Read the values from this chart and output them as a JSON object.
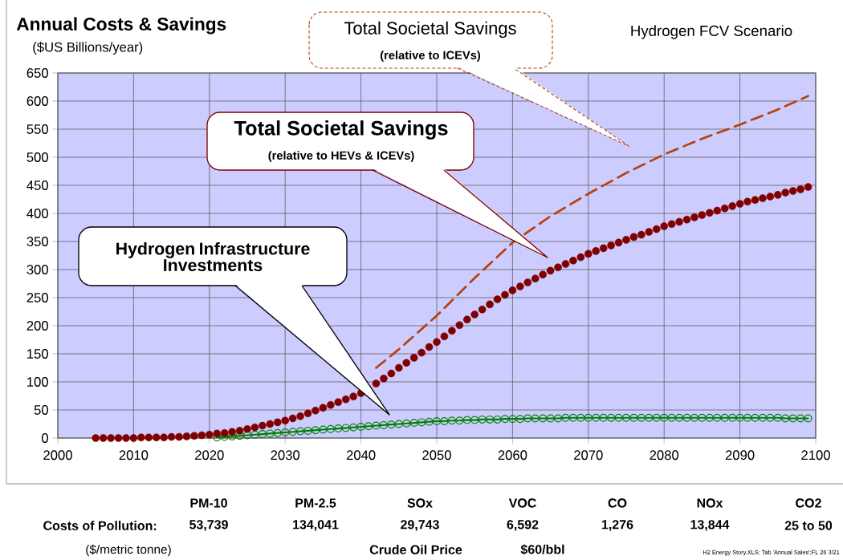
{
  "chart_data": {
    "type": "line",
    "title": "Annual Costs & Savings",
    "subtitle": "($US Billions/year)",
    "xlim": [
      2000,
      2100
    ],
    "ylim": [
      0,
      650
    ],
    "xticks": [
      2000,
      2010,
      2020,
      2030,
      2040,
      2050,
      2060,
      2070,
      2080,
      2090,
      2100
    ],
    "yticks": [
      0,
      50,
      100,
      150,
      200,
      250,
      300,
      350,
      400,
      450,
      500,
      550,
      600,
      650
    ],
    "grid": true,
    "series": [
      {
        "color": "#b5400a",
        "line_style": "dashed",
        "marker": "none",
        "x": [
          2042,
          2045,
          2050,
          2055,
          2060,
          2065,
          2070,
          2075,
          2080,
          2085,
          2090,
          2095,
          2099
        ],
        "values": [
          125,
          158,
          218,
          285,
          348,
          395,
          435,
          472,
          505,
          533,
          558,
          585,
          609
        ]
      },
      {
        "color": "#008000",
        "marker": "circle",
        "x": [
          2021,
          2022,
          2023,
          2024,
          2025,
          2026,
          2027,
          2028,
          2029,
          2030,
          2031,
          2032,
          2033,
          2034,
          2035,
          2036,
          2037,
          2038,
          2039,
          2040,
          2041,
          2042,
          2043,
          2044,
          2045,
          2046,
          2047,
          2048,
          2049,
          2050,
          2051,
          2052,
          2053,
          2054,
          2055,
          2056,
          2057,
          2058,
          2059,
          2060,
          2061,
          2062,
          2063,
          2064,
          2065,
          2066,
          2067,
          2068,
          2069,
          2070,
          2071,
          2072,
          2073,
          2074,
          2075,
          2076,
          2077,
          2078,
          2079,
          2080,
          2081,
          2082,
          2083,
          2084,
          2085,
          2086,
          2087,
          2088,
          2089,
          2090,
          2091,
          2092,
          2093,
          2094,
          2095,
          2096,
          2097,
          2098,
          2099
        ],
        "values": [
          1,
          2,
          3,
          4,
          5,
          6,
          7,
          8,
          9,
          10,
          11,
          12,
          13,
          14,
          15,
          16,
          17,
          18,
          19,
          20,
          21,
          22,
          23,
          24,
          25,
          26,
          27,
          28,
          29,
          30,
          30,
          31,
          31,
          32,
          32,
          33,
          33,
          33,
          34,
          34,
          34,
          35,
          35,
          35,
          35,
          35,
          36,
          36,
          36,
          36,
          36,
          36,
          36,
          36,
          36,
          36,
          36,
          36,
          36,
          36,
          36,
          36,
          36,
          36,
          36,
          36,
          36,
          36,
          36,
          36,
          36,
          36,
          36,
          36,
          36,
          35,
          35,
          35,
          35
        ]
      },
      {
        "type": "scatter",
        "color": "#800000",
        "marker": "circle",
        "x": [
          2005,
          2006,
          2007,
          2008,
          2009,
          2010,
          2011,
          2012,
          2013,
          2014,
          2015,
          2016,
          2017,
          2018,
          2019,
          2020,
          2021,
          2022,
          2023,
          2024,
          2025,
          2026,
          2027,
          2028,
          2029,
          2030,
          2031,
          2032,
          2033,
          2034,
          2035,
          2036,
          2037,
          2038,
          2039,
          2040,
          2041,
          2042,
          2043,
          2044,
          2045,
          2046,
          2047,
          2048,
          2049,
          2050,
          2051,
          2052,
          2053,
          2054,
          2055,
          2056,
          2057,
          2058,
          2059,
          2060,
          2061,
          2062,
          2063,
          2064,
          2065,
          2066,
          2067,
          2068,
          2069,
          2070,
          2071,
          2072,
          2073,
          2074,
          2075,
          2076,
          2077,
          2078,
          2079,
          2080,
          2081,
          2082,
          2083,
          2084,
          2085,
          2086,
          2087,
          2088,
          2089,
          2090,
          2091,
          2092,
          2093,
          2094,
          2095,
          2096,
          2097,
          2098,
          2099
        ],
        "values": [
          0,
          0,
          0,
          0,
          0,
          0,
          1,
          1,
          1,
          1,
          2,
          2,
          3,
          4,
          5,
          6,
          8,
          9,
          11,
          13,
          16,
          19,
          22,
          25,
          28,
          31,
          35,
          39,
          44,
          49,
          54,
          59,
          64,
          69,
          74,
          80,
          null,
          97,
          106,
          115,
          125,
          134,
          143,
          152,
          162,
          171,
          181,
          191,
          201,
          211,
          220,
          229,
          238,
          247,
          255,
          263,
          270,
          277,
          284,
          291,
          298,
          304,
          310,
          316,
          322,
          328,
          333,
          338,
          343,
          348,
          353,
          358,
          362,
          367,
          372,
          377,
          381,
          385,
          389,
          393,
          397,
          401,
          405,
          409,
          413,
          417,
          421,
          424,
          427,
          430,
          433,
          437,
          440,
          443,
          447
        ]
      }
    ],
    "annotations": [
      "Total Societal Savings",
      "(relative to  ICEVs)",
      "Total Societal Savings",
      "(relative to HEVs & ICEVs)",
      "Hydrogen Infrastructure Investments",
      "Hydrogen FCV Scenario",
      "PM-10",
      "PM-2.5",
      "SOx",
      "VOC",
      "CO",
      "NOx",
      "CO2",
      "Costs of Pollution:",
      "53,739",
      "134,041",
      "29,743",
      "6,592",
      "1,276",
      "13,844",
      "25 to 50",
      "($/metric tonne)",
      "Crude Oil Price",
      "$60/bbl",
      "H2 Energy Story.XLS; Tab 'Annual Sales';FL 26  3/21"
    ]
  }
}
